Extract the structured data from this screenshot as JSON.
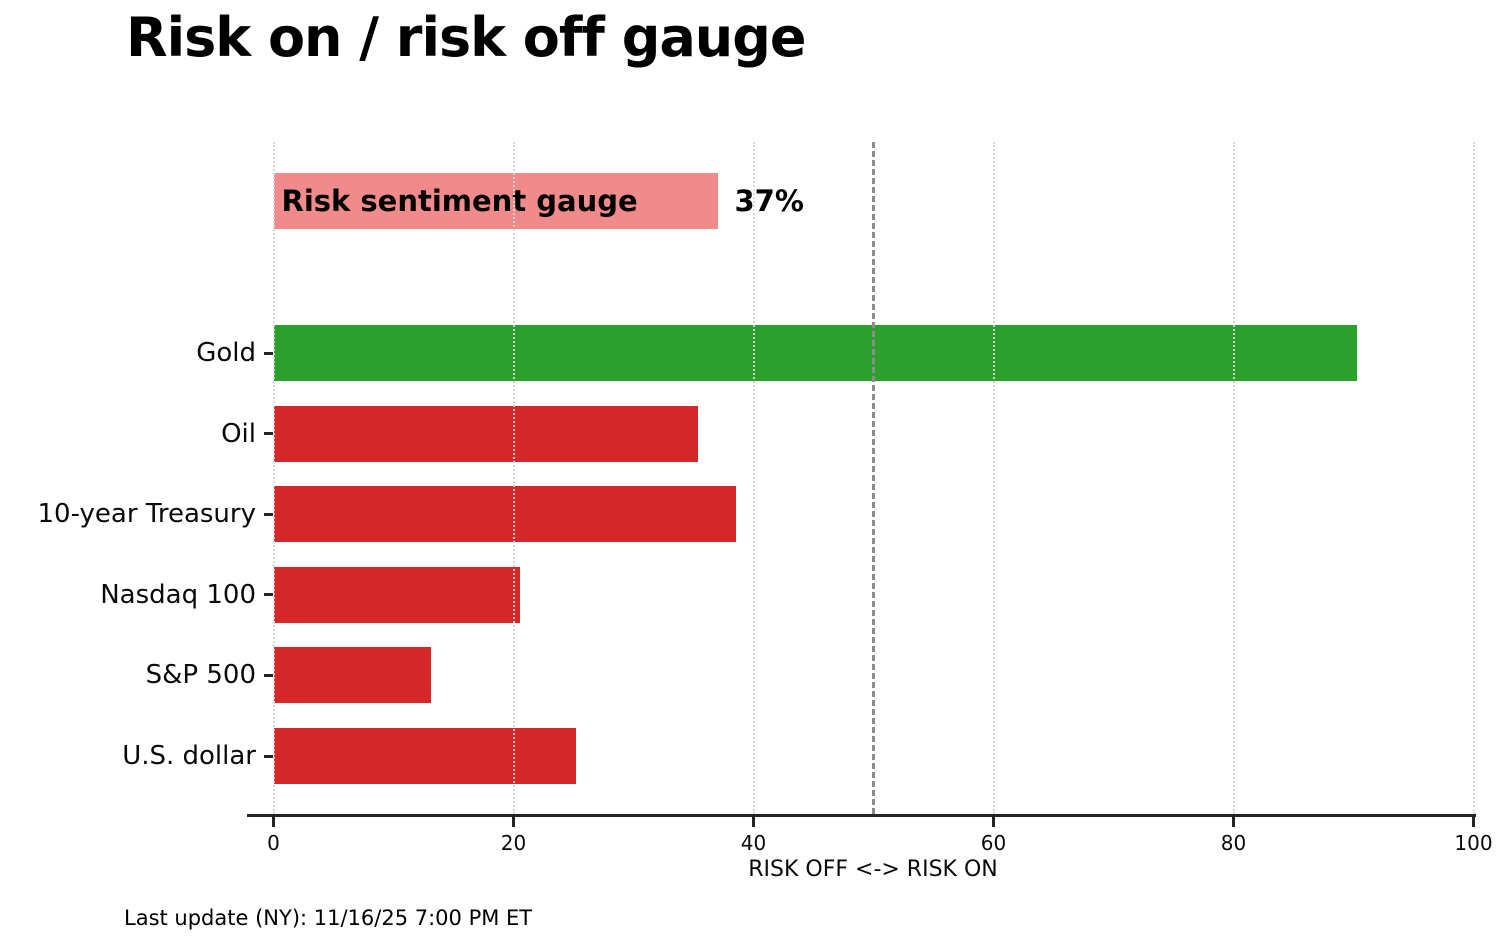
{
  "page": {
    "background": "#ffffff"
  },
  "chart_data": {
    "type": "bar",
    "orientation": "horizontal",
    "title": "Risk on / risk off gauge",
    "xlabel": "RISK OFF <-> RISK ON",
    "xlim": [
      0,
      100
    ],
    "xticks": [
      0,
      20,
      40,
      60,
      80,
      100
    ],
    "reference_line_x": 50,
    "grid": "dotted-vertical",
    "legend": "none",
    "gauge_bar": {
      "label": "Risk sentiment gauge",
      "value": 37,
      "value_label": "37%",
      "color": "#f18a8a"
    },
    "categories": [
      "Gold",
      "Oil",
      "10-year Treasury",
      "Nasdaq 100",
      "S&P 500",
      "U.S. dollar"
    ],
    "values": [
      90.3,
      35.4,
      38.5,
      20.5,
      13.1,
      25.2
    ],
    "bar_colors": [
      "#2ca02c",
      "#d62728",
      "#d62728",
      "#d62728",
      "#d62728",
      "#d62728"
    ],
    "colors": {
      "risk_on_green": "#2ca02c",
      "risk_off_red": "#d62728",
      "gauge_pink": "#f18a8a",
      "reference_line_gray": "#8c8c8c",
      "gridline_gray": "#d8d8d8",
      "axis_dark": "#262626"
    },
    "footer": "Last update (NY): 11/16/25 7:00 PM ET"
  }
}
